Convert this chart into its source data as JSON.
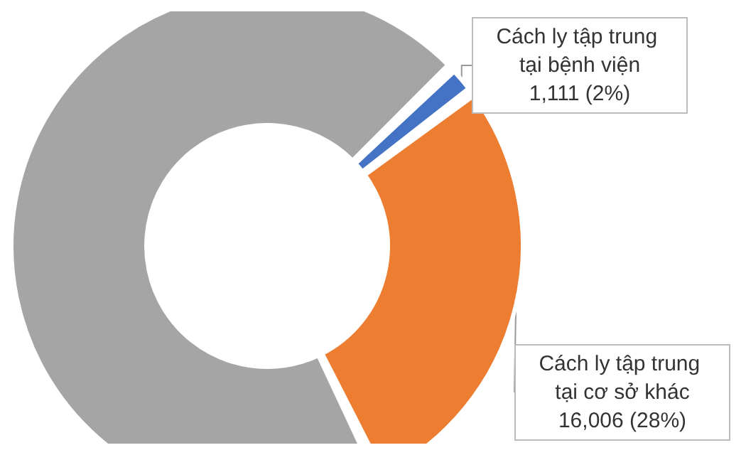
{
  "chart_data": {
    "type": "donut",
    "categories": [
      "Cách ly tập trung tại bệnh viện",
      "Cách ly tập trung tại cơ sở khác",
      null
    ],
    "values": [
      1111,
      16006,
      40000
    ],
    "colors": [
      "#4472c4",
      "#ed7d31",
      "#a5a5a5"
    ],
    "value_labels": [
      "1,111 (2%)",
      "16,006 (28%)",
      null
    ],
    "legend": false
  }
}
